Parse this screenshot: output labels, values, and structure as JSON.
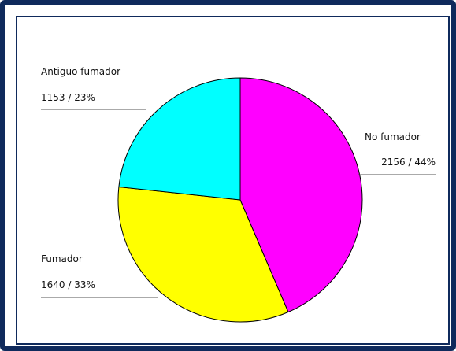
{
  "chart_data": {
    "type": "pie",
    "slices": [
      {
        "label": "No fumador",
        "value": 2156,
        "value_label": "2156 / 44%",
        "color": "#ff00ff"
      },
      {
        "label": "Fumador",
        "value": 1640,
        "value_label": "1640 / 33%",
        "color": "#ffff00"
      },
      {
        "label": "Antiguo fumador",
        "value": 1153,
        "value_label": "1153 / 23%",
        "color": "#00ffff"
      }
    ]
  }
}
